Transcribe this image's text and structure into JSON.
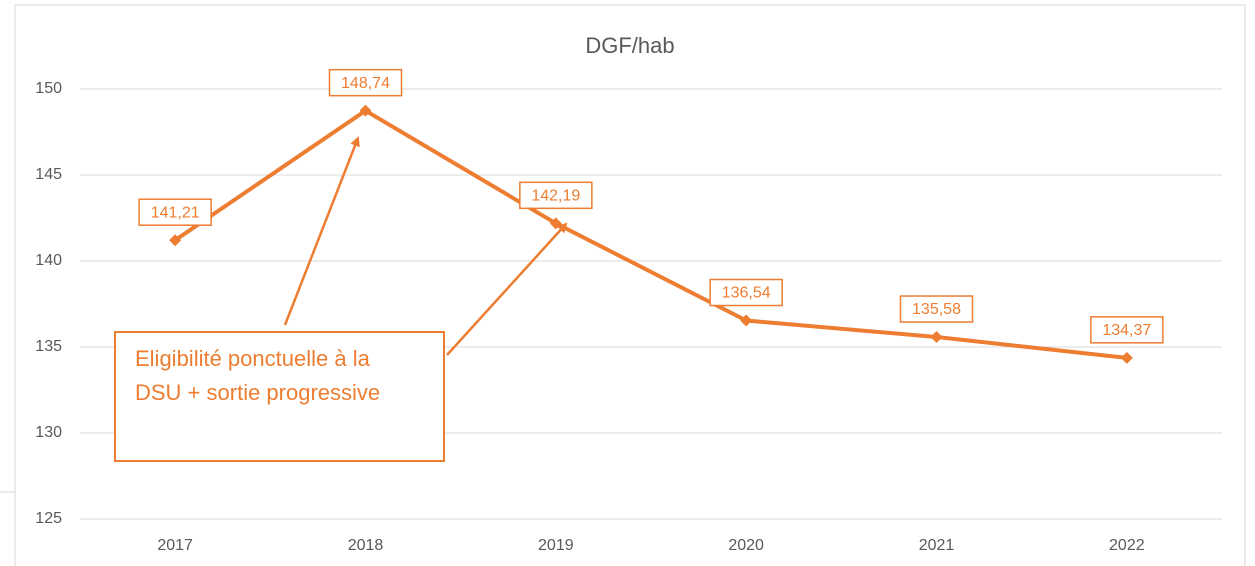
{
  "chart_data": {
    "type": "line",
    "title": "DGF/hab",
    "categories": [
      "2017",
      "2018",
      "2019",
      "2020",
      "2021",
      "2022"
    ],
    "series": [
      {
        "name": "DGF/hab",
        "color": "#ed7d31",
        "values": [
          141.21,
          148.74,
          142.19,
          136.54,
          135.58,
          134.37
        ],
        "value_labels": [
          "141,21",
          "148,74",
          "142,19",
          "136,54",
          "135,58",
          "134,37"
        ]
      }
    ],
    "ylim": [
      125,
      150
    ],
    "yticks": [
      125,
      130,
      135,
      140,
      145,
      150
    ],
    "grid": true,
    "annotation": [
      "Eligibilité ponctuelle à la",
      "DSU + sortie progressive"
    ]
  }
}
